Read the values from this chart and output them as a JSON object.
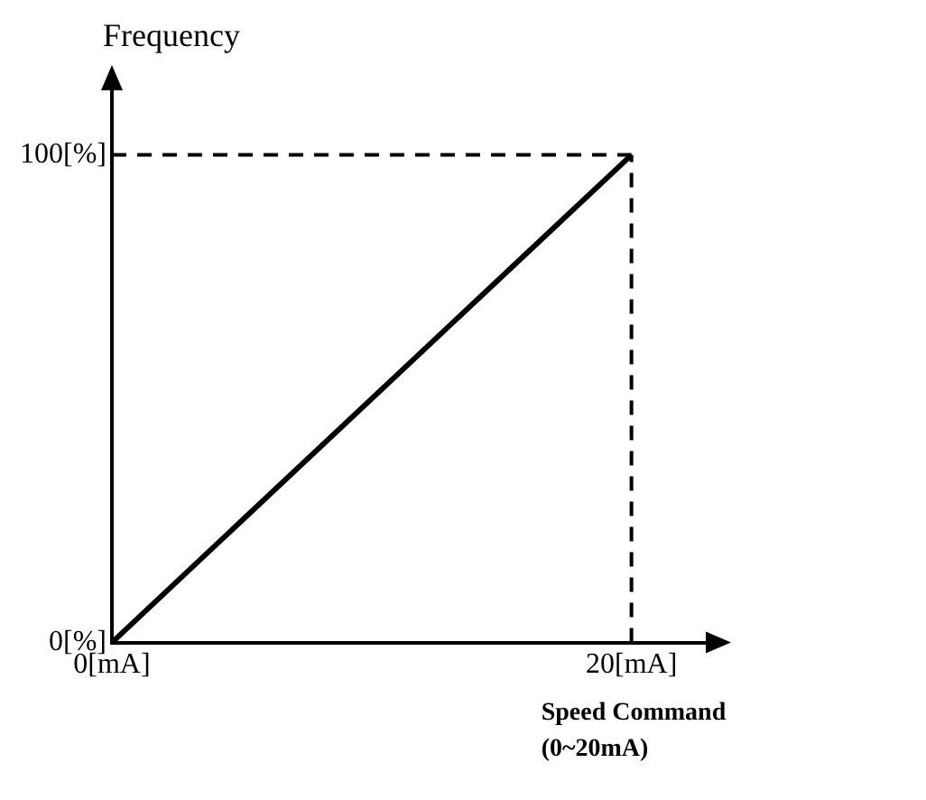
{
  "chart_data": {
    "type": "line",
    "ylabel": "Frequency",
    "xlabel": "Speed Command (0~20mA)",
    "x": [
      0,
      20
    ],
    "series": [
      {
        "color": "#000000",
        "values": [
          0,
          100
        ]
      }
    ],
    "xlim": [
      0,
      23
    ],
    "ylim": [
      0,
      114
    ],
    "xticks": [
      {
        "value": 0,
        "label": "0[mA]"
      },
      {
        "value": 20,
        "label": "20[mA]"
      }
    ],
    "yticks": [
      {
        "value": 0,
        "label": "0[%]"
      },
      {
        "value": 100,
        "label": "100[%]"
      }
    ],
    "ref_lines": [
      {
        "axis": "x",
        "value": 20,
        "color": "#000000",
        "line_style": "dashed"
      },
      {
        "axis": "y",
        "value": 100,
        "color": "#000000",
        "line_style": "dashed"
      }
    ],
    "grid": false,
    "legend": false,
    "marker": "none",
    "line_style": "solid"
  }
}
